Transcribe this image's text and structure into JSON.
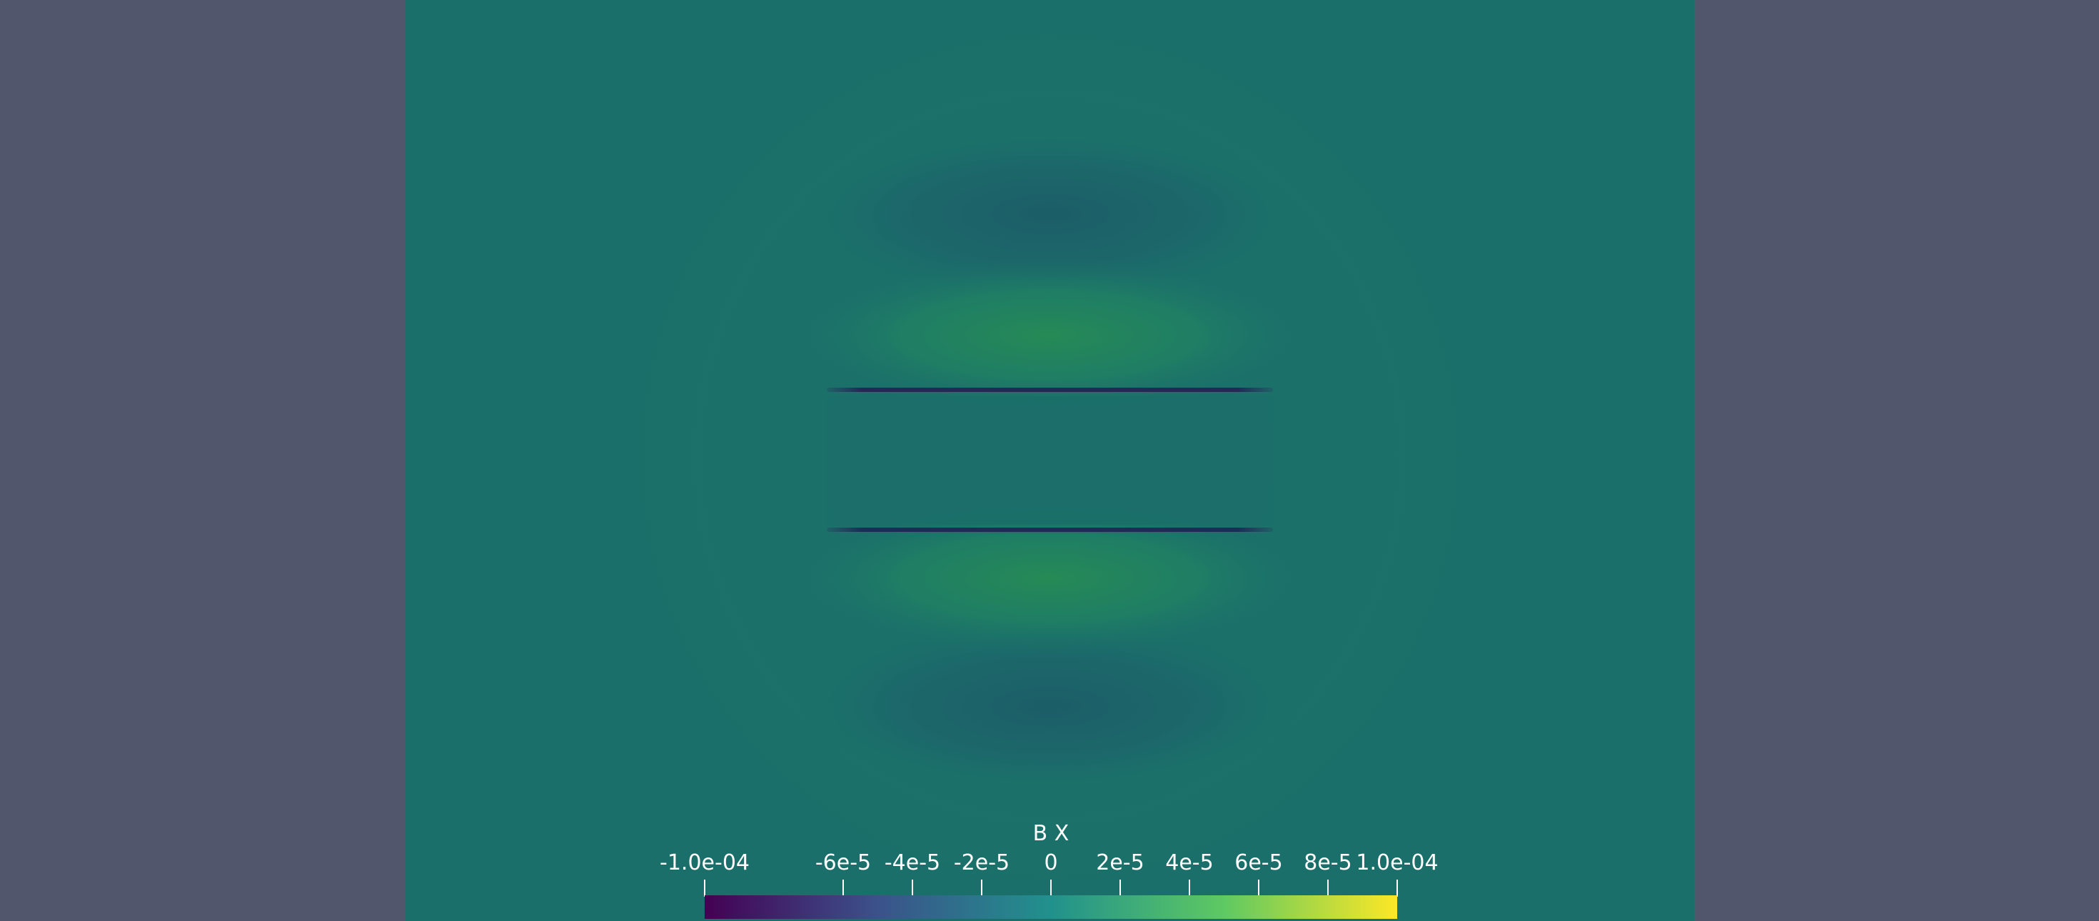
{
  "scalar_bar": {
    "title": "B X",
    "range": [
      -0.0001,
      0.0001
    ],
    "colormap": "viridis",
    "colormap_stops": [
      "#440154",
      "#3b528b",
      "#21918c",
      "#5ec962",
      "#fde725"
    ],
    "labels": [
      {
        "text": "-1.0e-04",
        "value": -0.0001
      },
      {
        "text": "-6e-5",
        "value": -6e-05
      },
      {
        "text": "-4e-5",
        "value": -4e-05
      },
      {
        "text": "-2e-5",
        "value": -2e-05
      },
      {
        "text": "0",
        "value": 0
      },
      {
        "text": "2e-5",
        "value": 2e-05
      },
      {
        "text": "4e-5",
        "value": 4e-05
      },
      {
        "text": "6e-5",
        "value": 6e-05
      },
      {
        "text": "8e-5",
        "value": 8e-05
      },
      {
        "text": "1.0e-04",
        "value": 0.0001
      }
    ]
  },
  "colors": {
    "background": "#52566c",
    "field_base": "#1b6f6a"
  }
}
